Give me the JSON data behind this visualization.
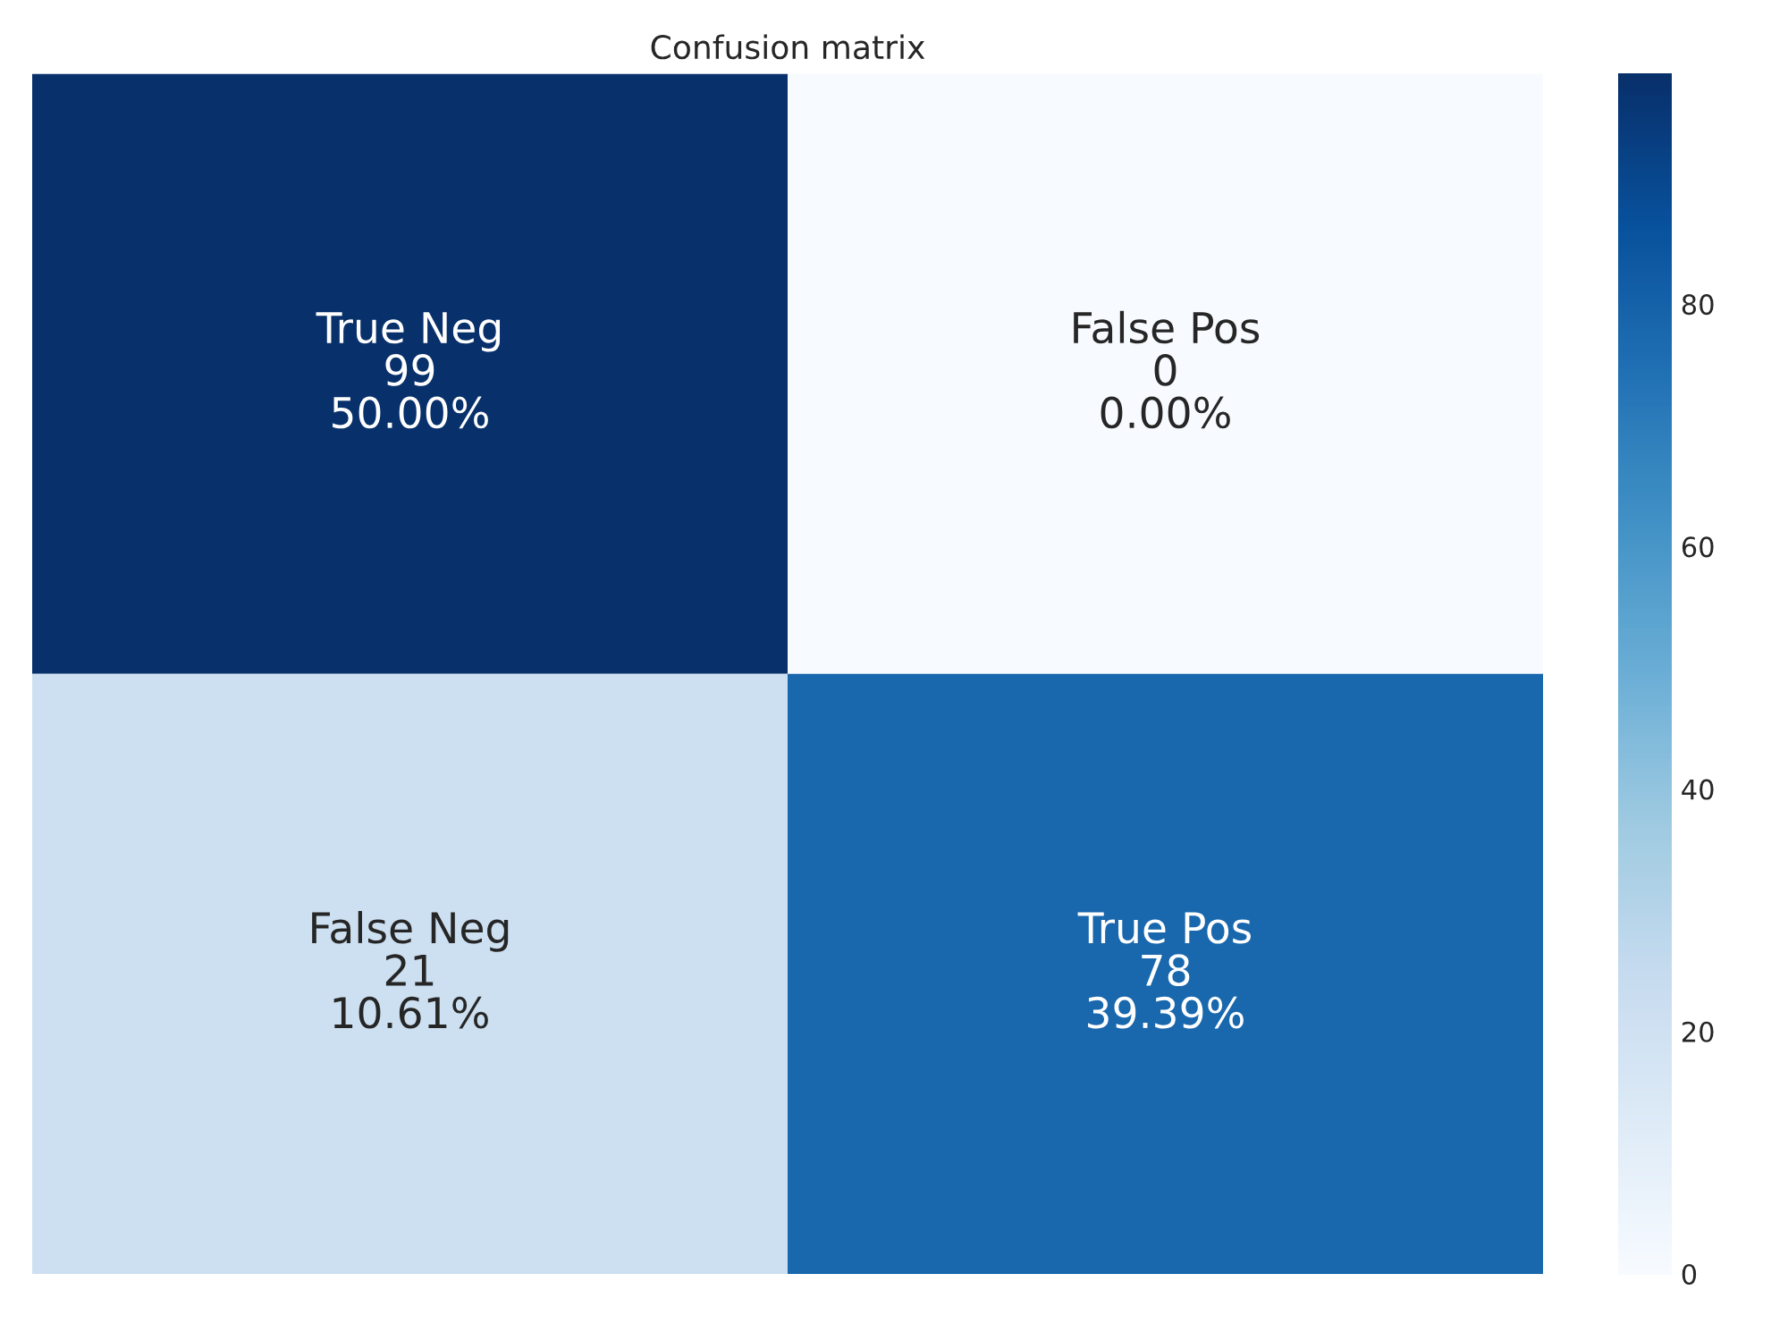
{
  "chart_data": {
    "type": "heatmap",
    "title": "Confusion matrix",
    "categories": [
      null,
      null
    ],
    "y_categories": [
      null,
      null
    ],
    "cells": [
      [
        99,
        0
      ],
      [
        21,
        78
      ]
    ],
    "cell_labels": [
      [
        "True Neg\n99\n50.00%",
        "False Pos\n0\n0.00%"
      ],
      [
        "False Neg\n21\n10.61%",
        "True Pos\n78\n39.39%"
      ]
    ],
    "clim": [
      0,
      99
    ],
    "cticks": [
      0,
      20,
      40,
      60,
      80
    ],
    "tick_labels": false
  }
}
